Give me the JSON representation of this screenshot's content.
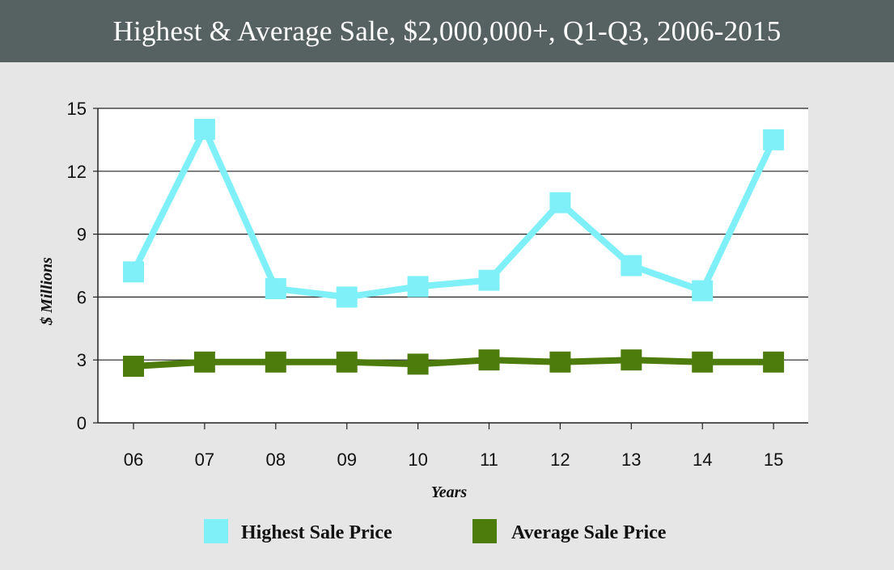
{
  "chart_data": {
    "type": "line",
    "title": "Highest & Average Sale, $2,000,000+, Q1-Q3, 2006-2015",
    "xlabel": "Years",
    "ylabel": "$ Millions",
    "categories": [
      "06",
      "07",
      "08",
      "09",
      "10",
      "11",
      "12",
      "13",
      "14",
      "15"
    ],
    "ylim": [
      0,
      15
    ],
    "yticks": [
      "0",
      "3",
      "6",
      "9",
      "12",
      "15"
    ],
    "grid": true,
    "legend_position": "bottom",
    "series": [
      {
        "name": "Highest Sale Price",
        "color": "#7ff0f7",
        "values": [
          7.2,
          14.0,
          6.4,
          6.0,
          6.5,
          6.8,
          10.5,
          7.5,
          6.3,
          13.5
        ]
      },
      {
        "name": "Average Sale Price",
        "color": "#4e7c0c",
        "values": [
          2.7,
          2.9,
          2.9,
          2.9,
          2.8,
          3.0,
          2.9,
          3.0,
          2.9,
          2.9
        ]
      }
    ]
  },
  "colors": {
    "header_bg": "#566261",
    "page_bg": "#e6e6e6",
    "plot_bg": "#ffffff"
  }
}
